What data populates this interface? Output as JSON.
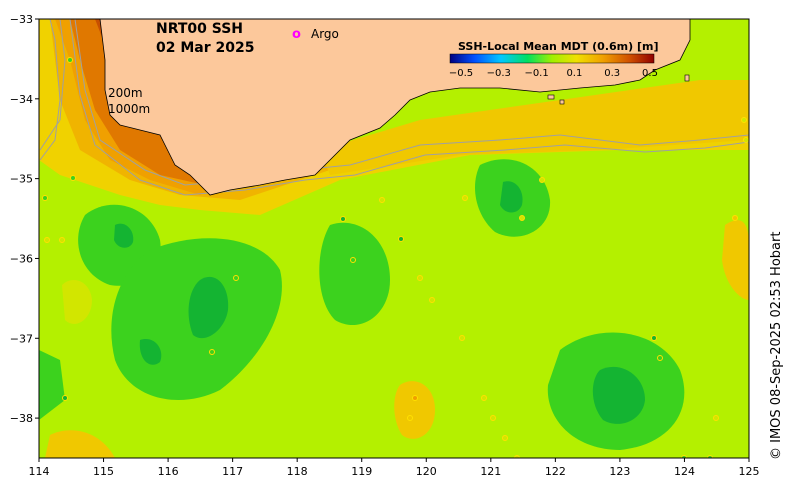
{
  "map": {
    "title_line1": "NRT00 SSH",
    "title_line2": "02 Mar 2025",
    "contour_label_200": "200m",
    "contour_label_1000": "1000m",
    "legend_argo": "Argo",
    "legend_argo_symbol": "o",
    "colorbar_title": "SSH-Local Mean MDT (0.6m) [m]",
    "colorbar_ticks": [
      "−0.5",
      "−0.3",
      "−0.1",
      "0.1",
      "0.3",
      "0.5"
    ],
    "colorbar_stops": [
      "#000080",
      "#0050ff",
      "#00c8ff",
      "#00e060",
      "#a0f000",
      "#f0e000",
      "#f0a000",
      "#d05000",
      "#900000"
    ],
    "x_tick_labels": [
      "114",
      "115",
      "116",
      "117",
      "118",
      "119",
      "120",
      "121",
      "122",
      "123",
      "124",
      "125"
    ],
    "y_tick_labels": [
      "−33",
      "−34",
      "−35",
      "−36",
      "−37",
      "−38"
    ],
    "x_range": [
      114,
      125
    ],
    "y_range": [
      -38.5,
      -33
    ],
    "credit": "© IMOS 08-Sep-2025 02:53 Hobart",
    "colors": {
      "land": "#fcc89b",
      "ssh_base": "#b4f000",
      "ssh_low": "#3cd21e",
      "ssh_lower": "#14b432",
      "ssh_high": "#f0d200",
      "ssh_higher": "#f0a000",
      "ssh_highest": "#c85000",
      "argo": "#ff00ff",
      "contour": "#a0a0a0"
    }
  }
}
